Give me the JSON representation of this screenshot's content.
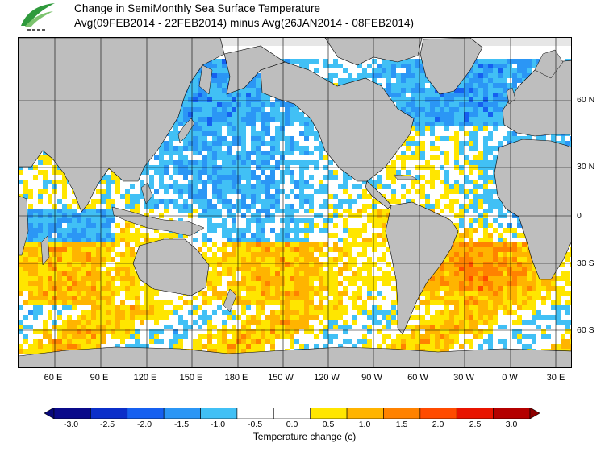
{
  "title": {
    "line1": "Change in SemiMonthly Sea Surface Temperature",
    "line2": "Avg(09FEB2014 - 22FEB2014) minus Avg(26JAN2014 - 08FEB2014)"
  },
  "map": {
    "lat_labels": [
      "60 N",
      "30 N",
      "0",
      "30 S",
      "60 S"
    ],
    "lon_labels": [
      "60 E",
      "90 E",
      "120 E",
      "150 E",
      "180 E",
      "150 W",
      "120 W",
      "90 W",
      "60 W",
      "30 W",
      "0 W",
      "30 E"
    ],
    "colors": {
      "land": "#bebebe",
      "ice": "#e6e6e6",
      "grid": "#000000"
    }
  },
  "colorbar": {
    "label": "Temperature change  (c)",
    "ticks": [
      "-3.0",
      "-2.5",
      "-2.0",
      "-1.5",
      "-1.0",
      "-0.5",
      "0.0",
      "0.5",
      "1.0",
      "1.5",
      "2.0",
      "2.5",
      "3.0"
    ],
    "bin_colors": [
      "#0a0a8a",
      "#0b2fc9",
      "#1660f0",
      "#2b96f5",
      "#41c0f5",
      "#ffffff",
      "#ffffff",
      "#ffe600",
      "#ffb400",
      "#ff8200",
      "#ff4b00",
      "#e81400",
      "#b40000"
    ]
  }
}
